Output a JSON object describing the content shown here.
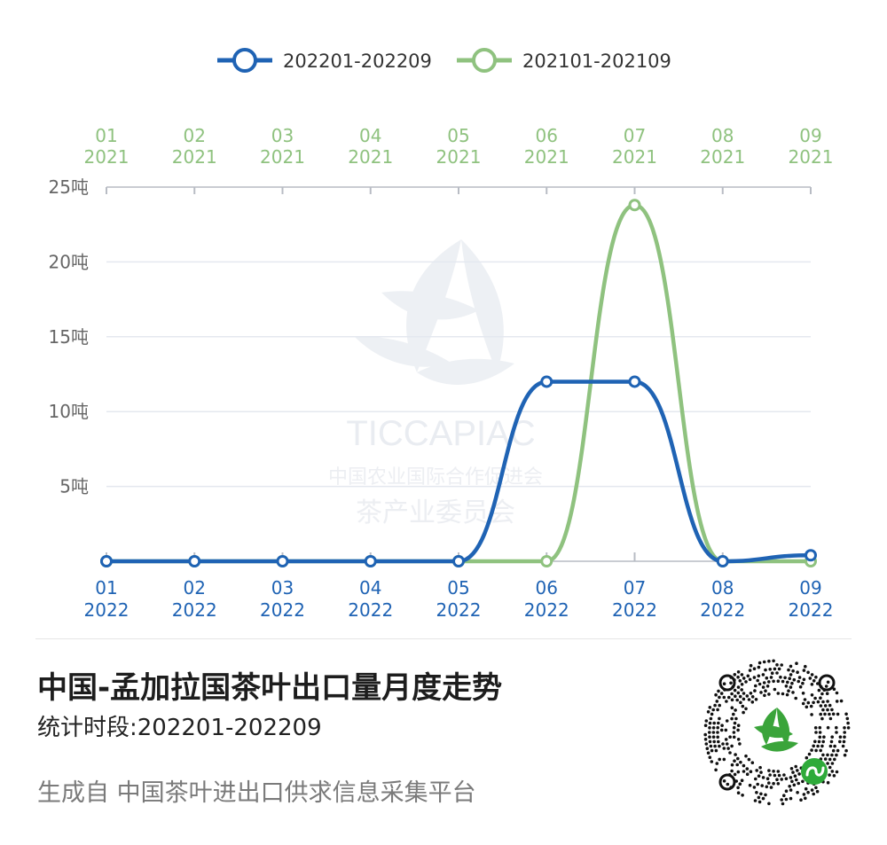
{
  "chart_data": {
    "type": "line",
    "legend": {
      "placement": "top-center"
    },
    "x_bottom": {
      "months": [
        "01",
        "02",
        "03",
        "04",
        "05",
        "06",
        "07",
        "08",
        "09"
      ],
      "year": "2022",
      "color": "#1f63b4"
    },
    "x_top": {
      "months": [
        "01",
        "02",
        "03",
        "04",
        "05",
        "06",
        "07",
        "08",
        "09"
      ],
      "year": "2021",
      "color": "#8fc27f"
    },
    "y_ticks": [
      "5吨",
      "10吨",
      "15吨",
      "20吨",
      "25吨"
    ],
    "ylim": [
      0,
      25
    ],
    "grid": true,
    "series": [
      {
        "name": "202201-202209",
        "color": "#1f63b4",
        "values": [
          0,
          0,
          0,
          0,
          0,
          12,
          12,
          0,
          0.4
        ]
      },
      {
        "name": "202101-202109",
        "color": "#8fc27f",
        "values": [
          0,
          0,
          0,
          0,
          0,
          0,
          23.8,
          0,
          0
        ]
      }
    ]
  },
  "watermark": {
    "line1": "TICCAPIAC",
    "line2": "中国农业国际合作促进会",
    "line3": "茶产业委员会"
  },
  "info": {
    "title": "中国-孟加拉国茶叶出口量月度走势",
    "subtitle": "统计时段:202201-202209",
    "footer": "生成自 中国茶叶进出口供求信息采集平台"
  },
  "qr": {
    "icon": "mini-program-qr-icon",
    "leaf_color": "#3aa43a",
    "badge_color": "#2eaa3a"
  }
}
